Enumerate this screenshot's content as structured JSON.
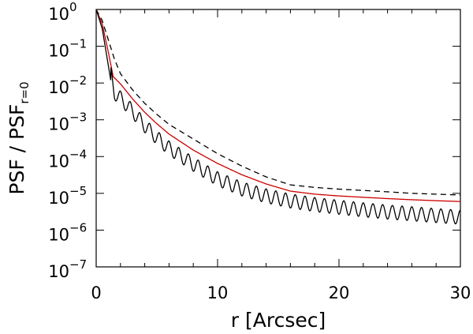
{
  "chart_data": {
    "type": "line",
    "xlabel": "r [Arcsec]",
    "ylabel": "PSF / PSF",
    "ylabel_subscript": "r=0",
    "x_scale": "linear",
    "y_scale": "log",
    "xlim": [
      0,
      30
    ],
    "ylim": [
      1e-07,
      1
    ],
    "x_ticks": [
      {
        "value": 0,
        "label": "0"
      },
      {
        "value": 10,
        "label": "10"
      },
      {
        "value": 20,
        "label": "20"
      },
      {
        "value": 30,
        "label": "30"
      }
    ],
    "y_ticks": [
      {
        "value": 1,
        "base": "10",
        "exp": "0"
      },
      {
        "value": 0.1,
        "base": "10",
        "exp": "−1"
      },
      {
        "value": 0.01,
        "base": "10",
        "exp": "−2"
      },
      {
        "value": 0.001,
        "base": "10",
        "exp": "−3"
      },
      {
        "value": 0.0001,
        "base": "10",
        "exp": "−4"
      },
      {
        "value": 1e-05,
        "base": "10",
        "exp": "−5"
      },
      {
        "value": 1e-06,
        "base": "10",
        "exp": "−6"
      },
      {
        "value": 1e-07,
        "base": "10",
        "exp": "−7"
      }
    ],
    "grid": false,
    "legend": "none",
    "series": [
      {
        "style": "dashed",
        "color": "#000000",
        "x": [
          0,
          0.5,
          1,
          1.5,
          2,
          3,
          4,
          5,
          6,
          8,
          10,
          12,
          14,
          16,
          18,
          20,
          22,
          24,
          26,
          28,
          30
        ],
        "y": [
          1.0,
          0.5,
          0.15,
          0.045,
          0.018,
          0.0065,
          0.0028,
          0.0014,
          0.00075,
          0.0003,
          0.00012,
          5.5e-05,
          2.8e-05,
          1.7e-05,
          1.45e-05,
          1.3e-05,
          1.2e-05,
          1.1e-05,
          1e-05,
          9.5e-06,
          9e-06
        ]
      },
      {
        "style": "solid",
        "color": "#cc0000",
        "x": [
          0,
          0.5,
          1,
          1.4,
          2,
          3,
          4,
          5,
          6,
          8,
          10,
          12,
          14,
          16,
          18,
          20,
          22,
          24,
          26,
          28,
          30
        ],
        "y": [
          1.0,
          0.4,
          0.07,
          0.015,
          0.0095,
          0.0037,
          0.0016,
          0.00078,
          0.00041,
          0.00015,
          6.5e-05,
          3.2e-05,
          1.8e-05,
          1.15e-05,
          9.5e-06,
          8.5e-06,
          7.8e-06,
          7.2e-06,
          6.7e-06,
          6.3e-06,
          6e-06
        ]
      },
      {
        "style": "solid",
        "color": "#000000",
        "oscillating": true,
        "x": [
          0,
          0.5,
          1.2,
          1.5,
          2,
          3,
          4,
          5,
          6,
          8,
          10,
          12,
          14,
          16,
          18,
          20,
          22,
          24,
          26,
          28,
          30
        ],
        "y": [
          1.0,
          0.3,
          0.012,
          0.0035,
          0.0025,
          0.0011,
          0.00045,
          0.00021,
          0.00011,
          4e-05,
          1.6e-05,
          8.5e-06,
          5.5e-06,
          4e-06,
          3.2e-06,
          2.7e-06,
          2.3e-06,
          2e-06,
          1.8e-06,
          1.6e-06,
          1.45e-06
        ],
        "oscillation_period_arcsec": 0.8,
        "oscillation_amplitude_dex": 0.38
      }
    ]
  }
}
